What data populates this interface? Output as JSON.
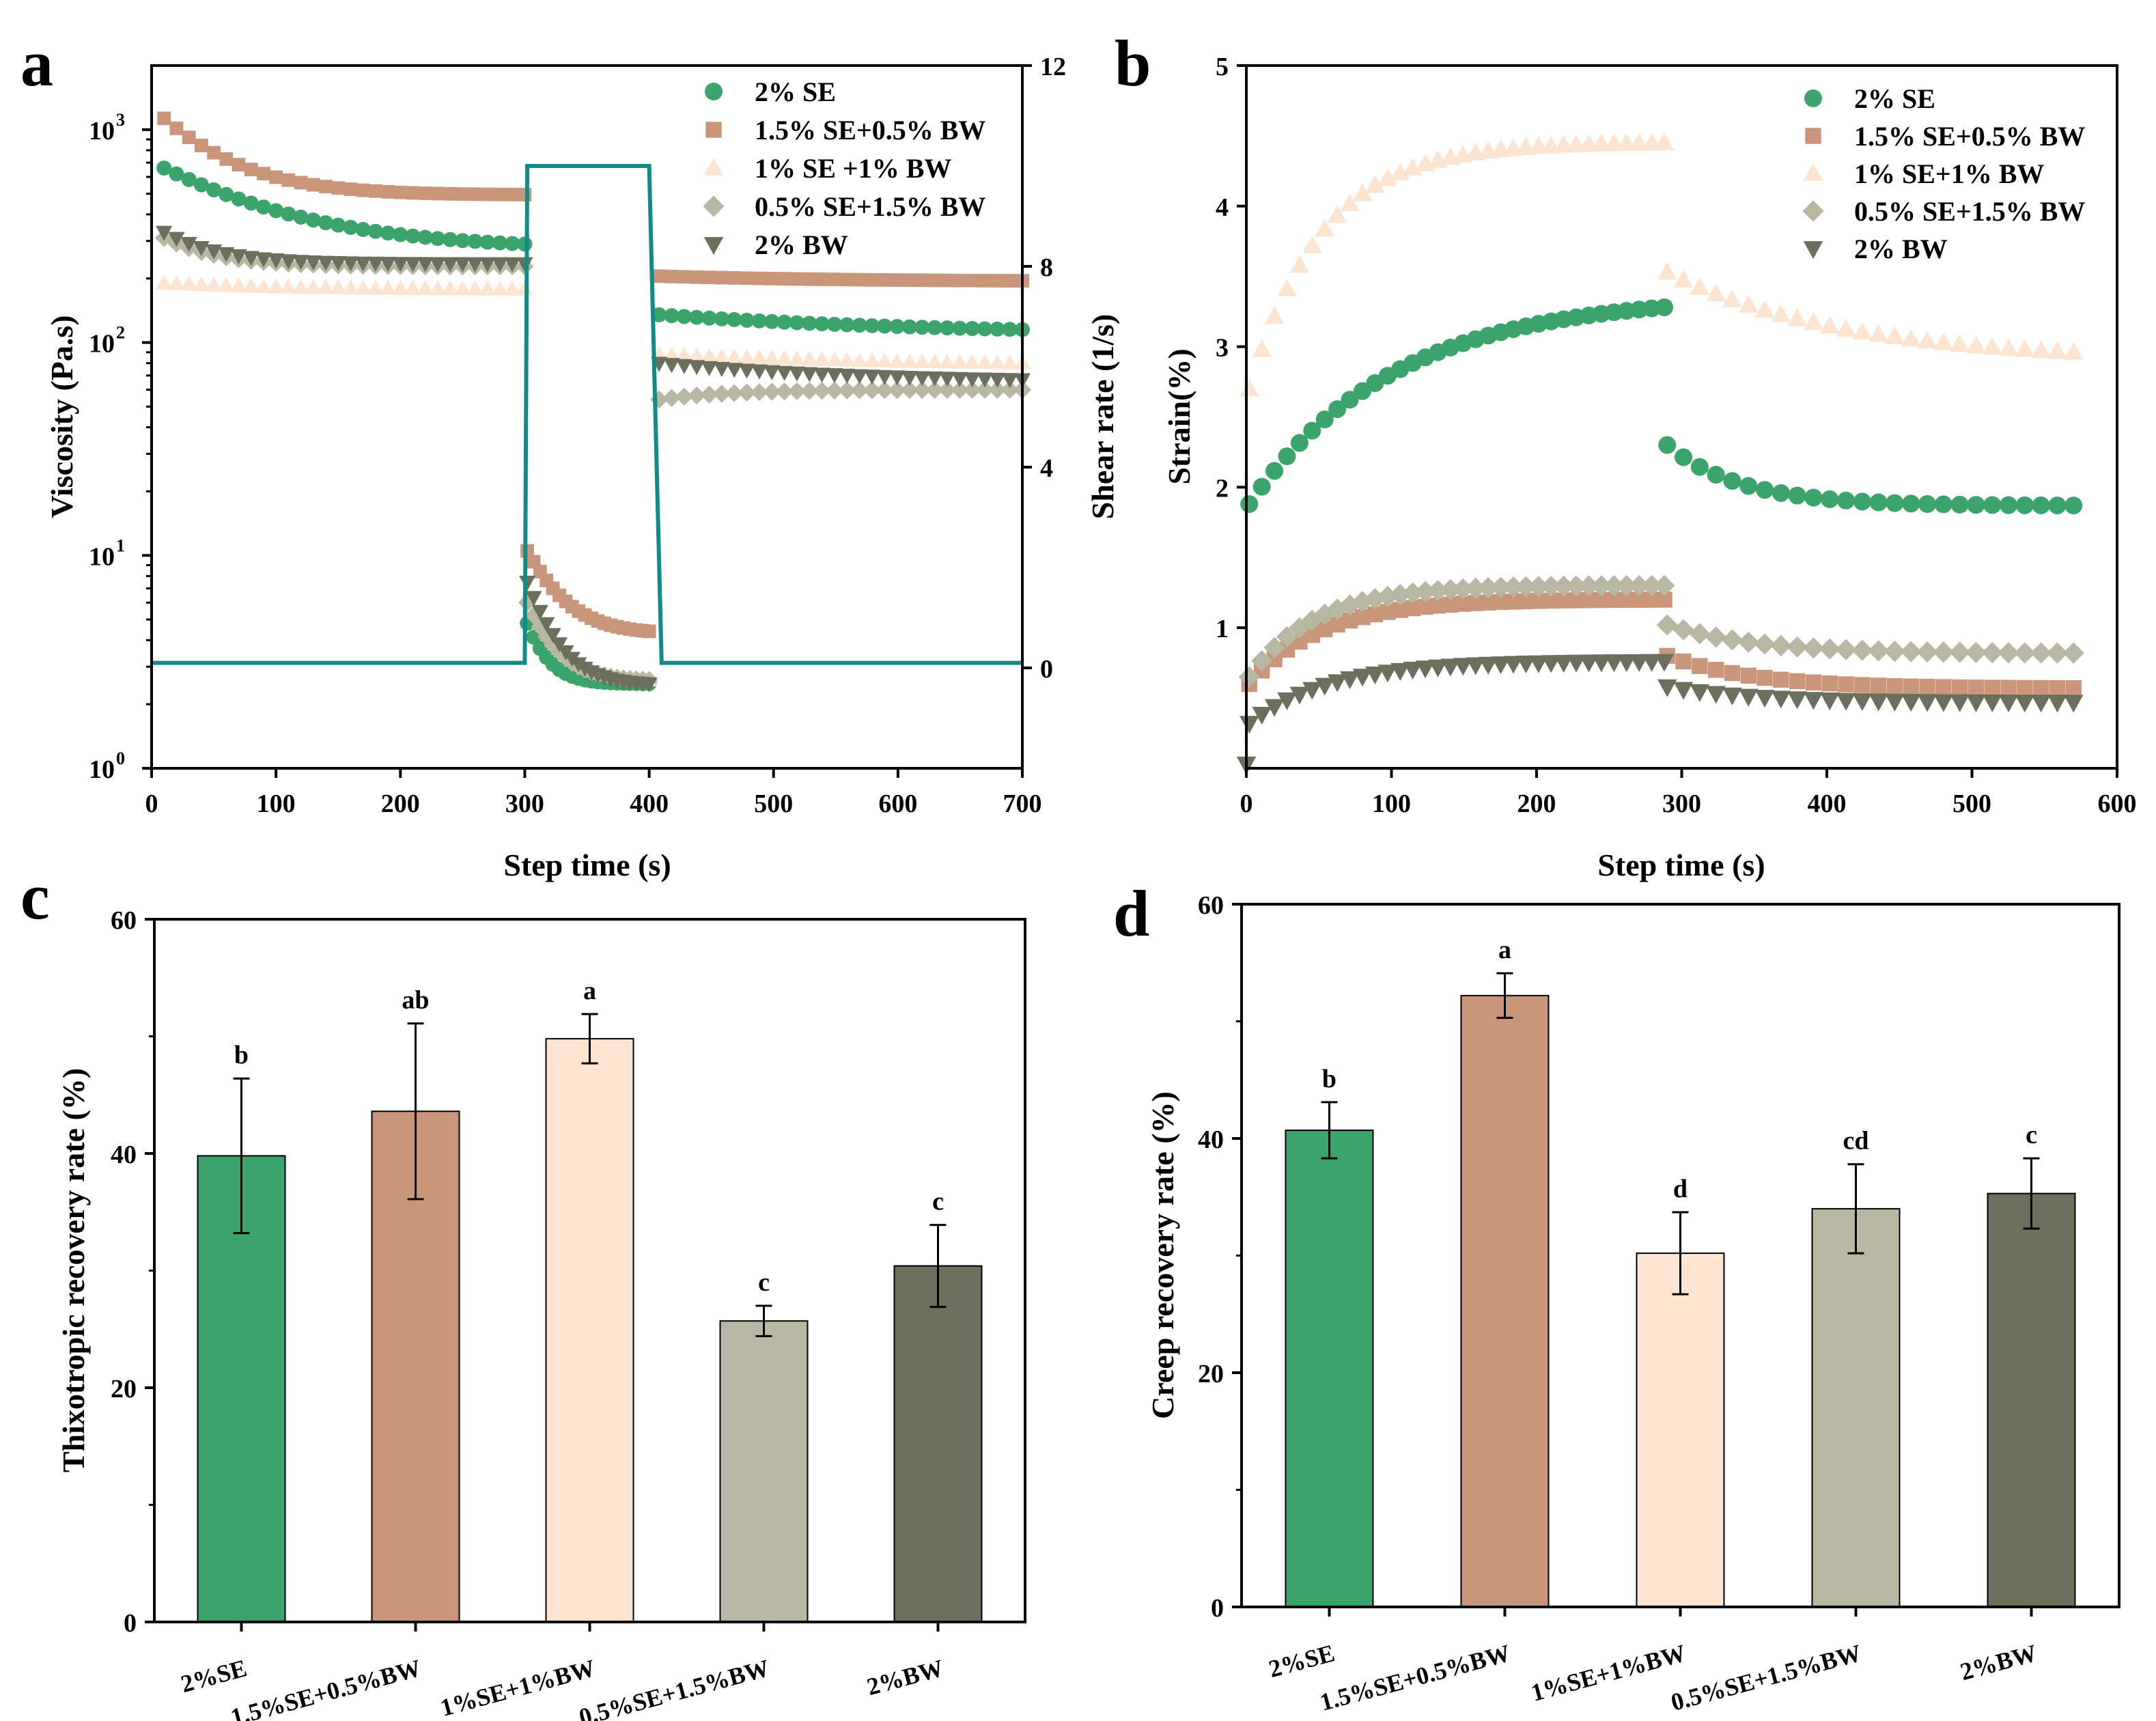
{
  "colors": {
    "se2": "#3ba46b",
    "se15bw05": "#c9957b",
    "se1bw1": "#fde5d1",
    "se05bw15": "#b8b8a2",
    "bw2": "#6b6f5c",
    "shear": "#128a88",
    "axis": "#000000"
  },
  "chart_data": [
    {
      "type": "scatter",
      "panel": "a",
      "xlabel": "Step time (s)",
      "ylabel": "Viscosity (Pa.s)",
      "ylabel_right": "Shear rate (1/s)",
      "xlim": [
        0,
        700
      ],
      "ylim": [
        1,
        2000
      ],
      "yscale": "log",
      "y2lim": [
        -2,
        12
      ],
      "xticks": [
        "0",
        "100",
        "200",
        "300",
        "400",
        "500",
        "600",
        "700"
      ],
      "xtick_values": [
        0,
        100,
        200,
        300,
        400,
        500,
        600,
        700
      ],
      "yticks": [
        "10",
        "10",
        "10",
        "10"
      ],
      "ytick_exponents": [
        "0",
        "1",
        "2",
        "3"
      ],
      "ytick_values": [
        1,
        10,
        100,
        1000
      ],
      "y2ticks": [
        "0",
        "4",
        "8",
        "12"
      ],
      "y2tick_values": [
        0,
        4,
        8,
        12
      ],
      "legend_position": "top-right",
      "series": [
        {
          "name": "2% SE",
          "marker": "circle",
          "color_key": "se2",
          "segments": [
            {
              "x0": 10,
              "x1": 300,
              "y0": 660,
              "y_end": 290,
              "tau": 90,
              "n": 30
            },
            {
              "x0": 302,
              "x1": 400,
              "y0": 4.8,
              "y_end": 2.5,
              "tau": 15,
              "n": 20
            },
            {
              "x0": 408,
              "x1": 700,
              "y0": 135,
              "y_end": 115,
              "tau": 200,
              "n": 30
            }
          ]
        },
        {
          "name": "1.5% SE+0.5% BW",
          "marker": "square",
          "color_key": "se15bw05",
          "segments": [
            {
              "x0": 10,
              "x1": 300,
              "y0": 1130,
              "y_end": 495,
              "tau": 50,
              "n": 30
            },
            {
              "x0": 302,
              "x1": 400,
              "y0": 10.5,
              "y_end": 4.4,
              "tau": 25,
              "n": 20
            },
            {
              "x0": 408,
              "x1": 700,
              "y0": 205,
              "y_end": 195,
              "tau": 150,
              "n": 30
            }
          ]
        },
        {
          "name": "1% SE +1% BW",
          "marker": "triangle-up",
          "color_key": "se1bw1",
          "segments": [
            {
              "x0": 10,
              "x1": 300,
              "y0": 190,
              "y_end": 178,
              "tau": 100,
              "n": 30
            },
            {
              "x0": 302,
              "x1": 400,
              "y0": 6.5,
              "y_end": 2.6,
              "tau": 20,
              "n": 20
            },
            {
              "x0": 408,
              "x1": 700,
              "y0": 88,
              "y_end": 80,
              "tau": 200,
              "n": 30
            }
          ]
        },
        {
          "name": "0.5% SE+1.5% BW",
          "marker": "diamond",
          "color_key": "se05bw15",
          "segments": [
            {
              "x0": 10,
              "x1": 300,
              "y0": 310,
              "y_end": 228,
              "tau": 40,
              "n": 30
            },
            {
              "x0": 302,
              "x1": 400,
              "y0": 6.0,
              "y_end": 2.6,
              "tau": 20,
              "n": 20
            },
            {
              "x0": 408,
              "x1": 700,
              "y0": 54,
              "y_end": 60,
              "tau": 60,
              "n": 30
            }
          ]
        },
        {
          "name": "2% BW",
          "marker": "triangle-down",
          "color_key": "bw2",
          "segments": [
            {
              "x0": 10,
              "x1": 300,
              "y0": 330,
              "y_end": 235,
              "tau": 40,
              "n": 30
            },
            {
              "x0": 302,
              "x1": 400,
              "y0": 7.5,
              "y_end": 2.5,
              "tau": 20,
              "n": 20
            },
            {
              "x0": 408,
              "x1": 700,
              "y0": 80,
              "y_end": 67,
              "tau": 150,
              "n": 30
            }
          ]
        }
      ],
      "shear_rate_line": {
        "x": [
          0,
          300,
          302,
          400,
          410,
          700
        ],
        "y": [
          0.1,
          0.1,
          10,
          10,
          0.1,
          0.1
        ]
      }
    },
    {
      "type": "scatter",
      "panel": "b",
      "xlabel": "Step time (s)",
      "ylabel": "Strain(%)",
      "xlim": [
        0,
        600
      ],
      "ylim": [
        0,
        5
      ],
      "xticks": [
        "0",
        "100",
        "200",
        "300",
        "400",
        "500",
        "600"
      ],
      "xtick_values": [
        0,
        100,
        200,
        300,
        400,
        500,
        600
      ],
      "yticks": [
        "1",
        "2",
        "3",
        "4",
        "5"
      ],
      "ytick_values": [
        1,
        2,
        3,
        4,
        5
      ],
      "legend_position": "top-right",
      "series": [
        {
          "name": "2% SE",
          "marker": "circle",
          "color_key": "se2",
          "segments": [
            {
              "x0": 2,
              "x1": 288,
              "y0": 1.88,
              "y_end": 3.28,
              "tau": 100,
              "n": 34
            },
            {
              "x0": 290,
              "x1": 570,
              "y0": 2.3,
              "y_end": 1.87,
              "tau": 50,
              "n": 26
            }
          ]
        },
        {
          "name": "1.5% SE+0.5% BW",
          "marker": "square",
          "color_key": "se15bw05",
          "segments": [
            {
              "x0": 2,
              "x1": 288,
              "y0": 0.6,
              "y_end": 1.2,
              "tau": 50,
              "n": 34
            },
            {
              "x0": 290,
              "x1": 570,
              "y0": 0.8,
              "y_end": 0.57,
              "tau": 60,
              "n": 26
            }
          ]
        },
        {
          "name": "1% SE+1% BW",
          "marker": "triangle-up",
          "color_key": "se1bw1",
          "segments": [
            {
              "x0": 2,
              "x1": 288,
              "y0": 2.7,
              "y_end": 4.45,
              "tau": 50,
              "n": 34
            },
            {
              "x0": 290,
              "x1": 570,
              "y0": 3.53,
              "y_end": 2.96,
              "tau": 120,
              "n": 26
            }
          ]
        },
        {
          "name": "0.5% SE+1.5% BW",
          "marker": "diamond",
          "color_key": "se05bw15",
          "segments": [
            {
              "x0": 2,
              "x1": 288,
              "y0": 0.65,
              "y_end": 1.3,
              "tau": 45,
              "n": 34
            },
            {
              "x0": 290,
              "x1": 570,
              "y0": 1.02,
              "y_end": 0.82,
              "tau": 60,
              "n": 26
            }
          ]
        },
        {
          "name": "2% BW",
          "marker": "triangle-down",
          "color_key": "bw2",
          "segments": [
            {
              "x0": 2,
              "x1": 288,
              "y0": 0.32,
              "y_end": 0.76,
              "tau": 55,
              "n": 34
            },
            {
              "x0": 290,
              "x1": 570,
              "y0": 0.58,
              "y_end": 0.47,
              "tau": 60,
              "n": 26
            }
          ]
        }
      ]
    },
    {
      "type": "bar",
      "panel": "c",
      "xlabel": "",
      "ylabel": "Thixotropic recovery rate (%)",
      "ylim": [
        0,
        60
      ],
      "yticks": [
        "0",
        "20",
        "40",
        "60"
      ],
      "ytick_values": [
        0,
        20,
        40,
        60
      ],
      "categories": [
        "2%SE",
        "1.5%SE+0.5%BW",
        "1%SE+1%BW",
        "0.5%SE+1.5%BW",
        "2%BW"
      ],
      "color_keys": [
        "se2",
        "se15bw05",
        "se1bw1",
        "se05bw15",
        "bw2"
      ],
      "values": [
        39.8,
        43.6,
        49.8,
        25.7,
        30.4
      ],
      "errors": [
        6.6,
        7.5,
        2.1,
        1.3,
        3.5
      ],
      "labels": [
        "b",
        "ab",
        "a",
        "c",
        "c"
      ]
    },
    {
      "type": "bar",
      "panel": "d",
      "xlabel": "",
      "ylabel": "Creep recovery rate (%)",
      "ylim": [
        0,
        60
      ],
      "yticks": [
        "0",
        "20",
        "40",
        "60"
      ],
      "ytick_values": [
        0,
        20,
        40,
        60
      ],
      "categories": [
        "2%SE",
        "1.5%SE+0.5%BW",
        "1%SE+1%BW",
        "0.5%SE+1.5%BW",
        "2%BW"
      ],
      "color_keys": [
        "se2",
        "se15bw05",
        "se1bw1",
        "se05bw15",
        "bw2"
      ],
      "values": [
        40.7,
        52.2,
        30.2,
        34.0,
        35.3
      ],
      "errors": [
        2.4,
        1.9,
        3.5,
        3.8,
        3.0
      ],
      "labels": [
        "b",
        "a",
        "d",
        "cd",
        "c"
      ]
    }
  ]
}
